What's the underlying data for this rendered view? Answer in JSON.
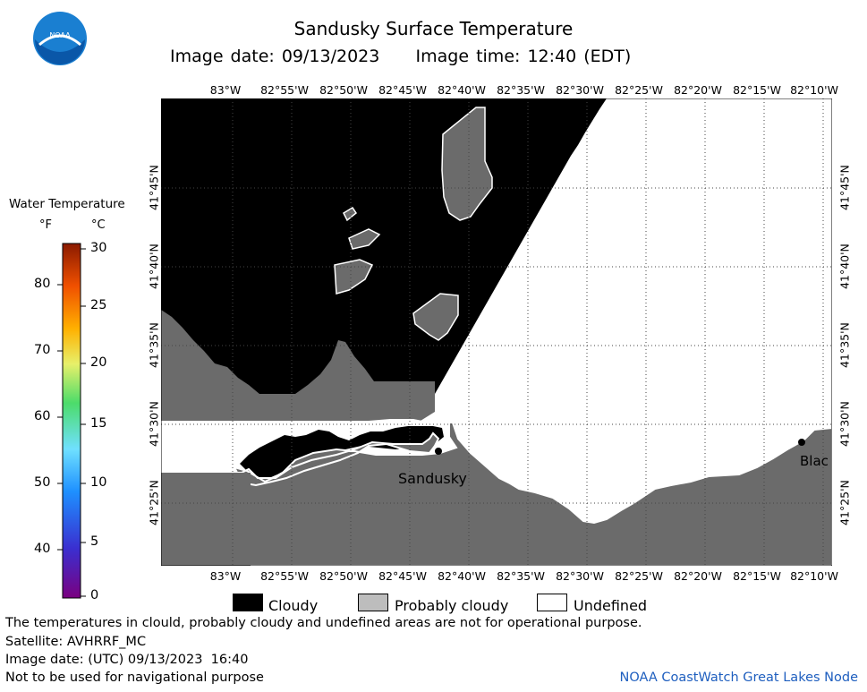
{
  "header": {
    "title": "Sandusky Surface Temperature",
    "subtitle": "Image date: 09/13/2023     Image time: 12:40 (EDT)",
    "logo_text": "NOAA"
  },
  "map": {
    "longitude_ticks": [
      "83°W",
      "82°55'W",
      "82°50'W",
      "82°45'W",
      "82°40'W",
      "82°35'W",
      "82°30'W",
      "82°25'W",
      "82°20'W",
      "82°15'W",
      "82°10'W"
    ],
    "latitude_ticks": [
      "41°45'N",
      "41°40'N",
      "41°35'N",
      "41°30'N",
      "41°25'N"
    ],
    "places": [
      {
        "name": "Sandusky"
      },
      {
        "name": "Blac"
      }
    ],
    "colors": {
      "cloudy": "#000000",
      "probably_cloudy": "#6b6b6b",
      "undefined": "#ffffff"
    }
  },
  "colorbar": {
    "title": "Water Temperature",
    "unit_f": "°F",
    "unit_c": "°C",
    "f_ticks": [
      "80",
      "70",
      "60",
      "50",
      "40"
    ],
    "c_ticks": [
      "30",
      "25",
      "20",
      "15",
      "10",
      "5",
      "0"
    ]
  },
  "legend": {
    "cloudy": "Cloudy",
    "probably_cloudy": "Probably cloudy",
    "undefined": "Undefined"
  },
  "footer": {
    "note": "The temperatures in clould, probably cloudy and undefined areas are not for operational purpose.",
    "satellite": "Satellite: AVHRRF_MC",
    "utc_date": "Image date: (UTC) 09/13/2023  16:40",
    "navigation": "Not to be used for navigational purpose",
    "credit": "NOAA CoastWatch Great Lakes Node"
  }
}
